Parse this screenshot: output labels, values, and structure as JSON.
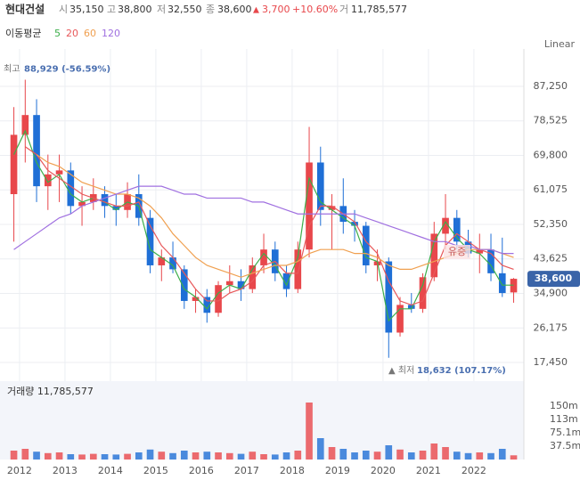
{
  "header": {
    "name": "현대건설",
    "open_label": "시",
    "open": "35,150",
    "high_label": "고",
    "high": "38,800",
    "low_label": "저",
    "low": "32,550",
    "close_label": "종",
    "close": "38,600",
    "arrow": "▲",
    "change": "3,700",
    "change_pct": "+10.60%",
    "volume_label": "거",
    "volume": "11,785,577"
  },
  "ma_label": "이동평균",
  "scale_label": "Linear",
  "volume_title": "거래량 11,785,577",
  "chart_data": {
    "type": "candlestick",
    "x": [
      2011.875,
      2012.125,
      2012.375,
      2012.625,
      2012.875,
      2013.125,
      2013.375,
      2013.625,
      2013.875,
      2014.125,
      2014.375,
      2014.625,
      2014.875,
      2015.125,
      2015.375,
      2015.625,
      2015.875,
      2016.125,
      2016.375,
      2016.625,
      2016.875,
      2017.125,
      2017.375,
      2017.625,
      2017.875,
      2018.125,
      2018.375,
      2018.625,
      2018.875,
      2019.125,
      2019.375,
      2019.625,
      2019.875,
      2020.125,
      2020.375,
      2020.625,
      2020.875,
      2021.125,
      2021.375,
      2021.625,
      2021.875,
      2022.125,
      2022.375,
      2022.625,
      2022.875
    ],
    "open": [
      60000,
      75000,
      80000,
      62000,
      65000,
      66000,
      57000,
      58000,
      60000,
      57000,
      56000,
      60000,
      54000,
      42000,
      44000,
      41000,
      33000,
      34000,
      30000,
      37000,
      38000,
      36000,
      42000,
      46000,
      40000,
      36000,
      46000,
      68000,
      56000,
      57000,
      53000,
      52000,
      42000,
      43000,
      25000,
      32000,
      31000,
      39000,
      50000,
      54000,
      48000,
      45000,
      46000,
      40000,
      35150
    ],
    "high": [
      82000,
      88929,
      84000,
      70000,
      70000,
      68000,
      62000,
      64000,
      62000,
      60000,
      63000,
      65000,
      56000,
      46000,
      48000,
      42000,
      36000,
      36000,
      38000,
      42000,
      41000,
      44000,
      50000,
      48000,
      42000,
      48000,
      77000,
      72000,
      60000,
      64000,
      56000,
      53000,
      46000,
      44000,
      34000,
      35000,
      40000,
      53000,
      60000,
      56000,
      51000,
      50000,
      50000,
      49000,
      38800
    ],
    "low": [
      48000,
      68000,
      58000,
      56000,
      58000,
      55000,
      52000,
      56000,
      54000,
      52000,
      54000,
      52000,
      40000,
      38000,
      40000,
      31000,
      30000,
      27500,
      29000,
      35000,
      33000,
      35000,
      40000,
      38000,
      34000,
      35000,
      44000,
      52000,
      46000,
      50000,
      48000,
      40000,
      38000,
      18632,
      24000,
      30000,
      30000,
      38000,
      46000,
      46000,
      44000,
      40000,
      38000,
      34000,
      32550
    ],
    "close": [
      75000,
      80000,
      62000,
      65000,
      66000,
      57000,
      58000,
      60000,
      57000,
      56000,
      60000,
      54000,
      42000,
      44000,
      41000,
      33000,
      34000,
      30000,
      37000,
      38000,
      36000,
      42000,
      46000,
      40000,
      36000,
      46000,
      68000,
      56000,
      57000,
      53000,
      52000,
      42000,
      43000,
      25000,
      32000,
      31000,
      39000,
      50000,
      54000,
      48000,
      45000,
      46000,
      40000,
      35000,
      38600
    ],
    "volumes": [
      25000000,
      30000000,
      22000000,
      18000000,
      20000000,
      15000000,
      14000000,
      16000000,
      15000000,
      14000000,
      16000000,
      20000000,
      28000000,
      22000000,
      18000000,
      25000000,
      20000000,
      22000000,
      20000000,
      18000000,
      16000000,
      22000000,
      15000000,
      14000000,
      20000000,
      25000000,
      160000000,
      60000000,
      35000000,
      30000000,
      20000000,
      25000000,
      22000000,
      40000000,
      28000000,
      20000000,
      25000000,
      45000000,
      35000000,
      22000000,
      18000000,
      20000000,
      18000000,
      30000000,
      11785577
    ],
    "up_color": "#e8474b",
    "down_color": "#1f6fd6",
    "series": [
      {
        "name": "5",
        "color": "#3cae4a",
        "values": [
          70000,
          76000,
          68000,
          63000,
          65000,
          60000,
          58000,
          59000,
          58000,
          56000,
          58000,
          57000,
          46000,
          44000,
          42000,
          36000,
          34000,
          31000,
          35000,
          37000,
          36000,
          41000,
          45000,
          42000,
          37000,
          44000,
          64000,
          58000,
          56000,
          54000,
          52000,
          44000,
          43000,
          28000,
          31000,
          31000,
          37000,
          48000,
          53000,
          49000,
          46000,
          45000,
          42000,
          37000,
          37000
        ]
      },
      {
        "name": "20",
        "color": "#e8585a",
        "values": [
          null,
          72000,
          70000,
          66000,
          64000,
          62000,
          60000,
          59000,
          58000,
          57000,
          57000,
          58000,
          52000,
          47000,
          44000,
          40000,
          36000,
          33000,
          33000,
          35000,
          36000,
          38000,
          42000,
          43000,
          40000,
          40000,
          52000,
          57000,
          57000,
          55000,
          53000,
          48000,
          45000,
          38000,
          33000,
          32000,
          33000,
          40000,
          47000,
          50000,
          48000,
          46000,
          45000,
          42000,
          41000
        ]
      },
      {
        "name": "60",
        "color": "#f0a050",
        "values": [
          null,
          null,
          70000,
          68000,
          67000,
          65000,
          63000,
          62000,
          61000,
          60000,
          60000,
          59000,
          57000,
          54000,
          50000,
          47000,
          44000,
          42000,
          41000,
          40000,
          39000,
          40000,
          41000,
          42000,
          42000,
          43000,
          45000,
          46000,
          46000,
          46000,
          45000,
          45000,
          44000,
          42000,
          41000,
          41000,
          42000,
          43000,
          44000,
          45000,
          46000,
          46000,
          46000,
          45000,
          44000
        ]
      },
      {
        "name": "120",
        "color": "#a070e0",
        "values": [
          46000,
          48000,
          50000,
          52000,
          54000,
          55000,
          57000,
          58000,
          59000,
          60000,
          61000,
          62000,
          62000,
          62000,
          61000,
          60000,
          60000,
          59000,
          59000,
          59000,
          59000,
          58000,
          58000,
          57000,
          56000,
          55000,
          55000,
          55000,
          55000,
          55000,
          55000,
          54000,
          53000,
          52000,
          51000,
          50000,
          49000,
          48000,
          48000,
          47000,
          47000,
          46000,
          46000,
          45000,
          45000
        ]
      }
    ],
    "xlim": [
      2011.57,
      2023.1
    ],
    "xticks": [
      2012,
      2013,
      2014,
      2015,
      2016,
      2017,
      2018,
      2019,
      2020,
      2021,
      2022
    ],
    "ylim": [
      13400,
      96700
    ],
    "yticks": [
      {
        "value": 17450,
        "label": "17,450"
      },
      {
        "value": 26175,
        "label": "26,175"
      },
      {
        "value": 34900,
        "label": "34,900"
      },
      {
        "value": 43625,
        "label": "43,625"
      },
      {
        "value": 52350,
        "label": "52,350"
      },
      {
        "value": 61075,
        "label": "61,075"
      },
      {
        "value": 69800,
        "label": "69,800"
      },
      {
        "value": 78525,
        "label": "78,525"
      },
      {
        "value": 87250,
        "label": "87,250"
      }
    ],
    "y2lim": [
      0,
      220000000
    ],
    "y2ticks": [
      {
        "value": 37500000,
        "label": "37.5m"
      },
      {
        "value": 75100000,
        "label": "75.1m"
      },
      {
        "value": 113000000,
        "label": "113m"
      },
      {
        "value": 150000000,
        "label": "150m"
      }
    ],
    "grid": true,
    "high_note": {
      "prefix": "최고",
      "value": 88929,
      "label": "88,929 (-56.59%)"
    },
    "low_note": {
      "prefix": "▲ 최저",
      "value": 18632,
      "label": "18,632 (107.17%)"
    },
    "last_price": {
      "value": 38600,
      "label": "38,600"
    },
    "annotation": "유증"
  }
}
